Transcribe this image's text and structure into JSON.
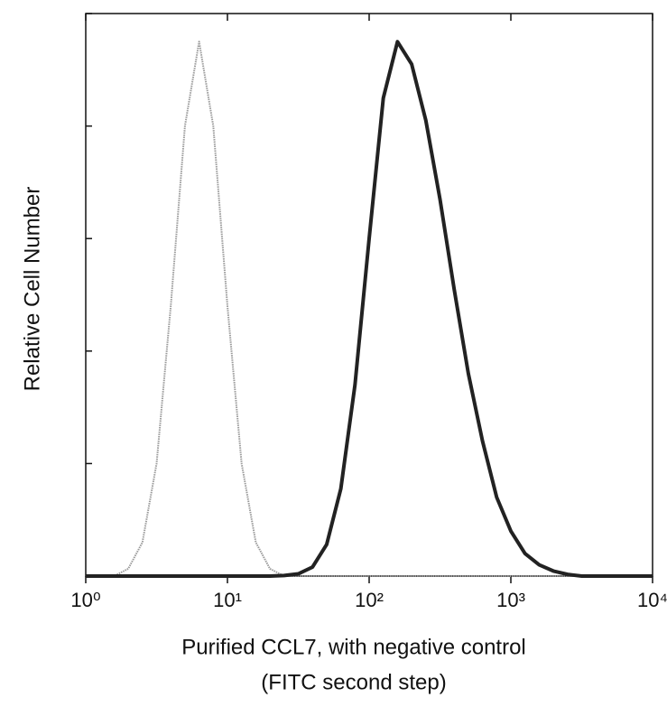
{
  "chart_data": {
    "type": "line",
    "ylabel": "Relative Cell Number",
    "xlabel": [
      "Purified CCL7, with negative control",
      "(FITC second step)"
    ],
    "xscale": "log",
    "xlim": [
      1,
      10000
    ],
    "xticks": [
      {
        "value": 1,
        "label": "10⁰"
      },
      {
        "value": 10,
        "label": "10¹"
      },
      {
        "value": 100,
        "label": "10²"
      },
      {
        "value": 1000,
        "label": "10³"
      },
      {
        "value": 10000,
        "label": "10⁴"
      }
    ],
    "ylim": [
      0,
      100
    ],
    "yticks": [
      0,
      20,
      40,
      60,
      80,
      100
    ],
    "x": [
      1,
      1.259,
      1.585,
      1.995,
      2.512,
      3.162,
      3.981,
      5.012,
      6.31,
      7.943,
      10,
      12.59,
      15.85,
      19.95,
      25.12,
      31.62,
      39.81,
      50.12,
      63.1,
      79.43,
      100,
      125.9,
      158.5,
      199.5,
      251.2,
      316.2,
      398.1,
      501.2,
      631,
      794.3,
      1000,
      1259,
      1585,
      1995,
      2512,
      3162,
      3981,
      5012,
      6310,
      7943,
      10000
    ],
    "series": [
      {
        "color": "#9a9a9a",
        "values": [
          0,
          0,
          0,
          1.3,
          6,
          20,
          48,
          80,
          95,
          80,
          48,
          20,
          6,
          1.3,
          0,
          0,
          0,
          0,
          0,
          0,
          0,
          0,
          0,
          0,
          0,
          0,
          0,
          0,
          0,
          0,
          0,
          0,
          0,
          0,
          0,
          0,
          0,
          0,
          0,
          0,
          0
        ]
      },
      {
        "color": "#222222",
        "values": [
          0,
          0,
          0,
          0,
          0,
          0,
          0,
          0,
          0,
          0,
          0,
          0,
          0,
          0,
          0.1,
          0.4,
          1.6,
          5.6,
          15.5,
          34,
          60,
          85,
          95,
          91,
          81,
          67,
          51,
          36,
          24,
          14,
          8,
          4,
          2,
          0.9,
          0.3,
          0,
          0,
          0,
          0,
          0,
          0
        ]
      }
    ]
  }
}
